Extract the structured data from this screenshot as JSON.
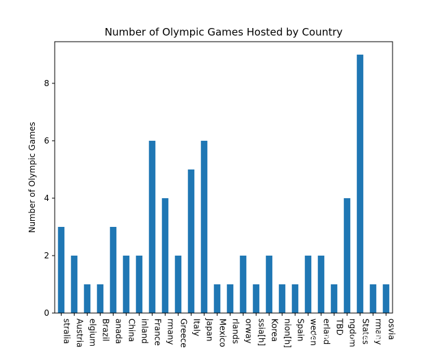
{
  "chart_data": {
    "type": "bar",
    "title": "Number of Olympic Games Hosted by Country",
    "xlabel": "",
    "ylabel": "Number of Olympic Games",
    "ylim": [
      0,
      9.45
    ],
    "yticks": [
      0,
      2,
      4,
      6,
      8
    ],
    "ytick_labels": [
      "0",
      "2",
      "4",
      "6",
      "8"
    ],
    "grid": false,
    "bar_color": "#1f77b4",
    "categories": [
      "stralia",
      "Austria",
      "elgium",
      "Brazil",
      "anada",
      "China",
      "inland",
      "France",
      "rmany",
      "Greece",
      "Italy",
      "Japan",
      "Mexico",
      "rlands",
      "orway",
      "ssia[h]",
      "Korea",
      "nion[h]",
      "Spain",
      "weden",
      "erland",
      "TBD",
      "ngdom",
      "States",
      "rmany",
      "osvia"
    ],
    "values": [
      3,
      2,
      1,
      1,
      3,
      2,
      2,
      6,
      4,
      2,
      5,
      6,
      1,
      1,
      2,
      1,
      2,
      1,
      1,
      2,
      2,
      1,
      4,
      9,
      1,
      1
    ]
  },
  "watermark": "CSDN @BEAT数模社_"
}
